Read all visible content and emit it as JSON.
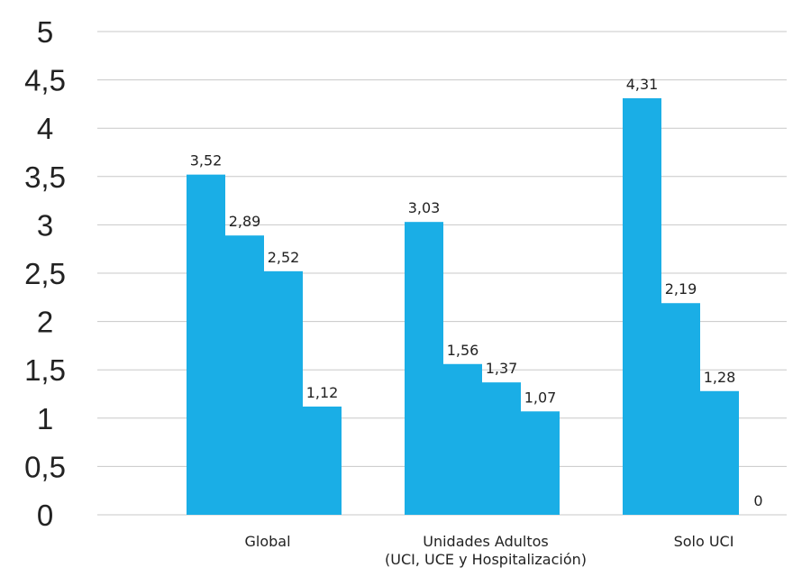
{
  "chart_data": {
    "type": "bar",
    "title": "",
    "xlabel": "",
    "ylabel": "",
    "ylim": [
      0,
      5
    ],
    "yticks": [
      "0",
      "0,5",
      "1",
      "1,5",
      "2",
      "2,5",
      "3",
      "3,5",
      "4",
      "4,5",
      "5"
    ],
    "grid": true,
    "legend": "none",
    "categories": [
      [
        "Global"
      ],
      [
        "Unidades Adultos",
        "(UCI, UCE y Hospitalización)"
      ],
      [
        "Solo UCI"
      ]
    ],
    "values": [
      [
        3.52,
        2.89,
        2.52,
        1.12
      ],
      [
        3.03,
        1.56,
        1.37,
        1.07
      ],
      [
        4.31,
        2.19,
        1.28,
        0
      ]
    ],
    "data_labels": [
      [
        "3,52",
        "2,89",
        "2,52",
        "1,12"
      ],
      [
        "3,03",
        "1,56",
        "1,37",
        "1,07"
      ],
      [
        "4,31",
        "2,19",
        "1,28",
        "0"
      ]
    ],
    "bar_color": "#1aaee6",
    "grid_color": "#c8c8c8"
  }
}
